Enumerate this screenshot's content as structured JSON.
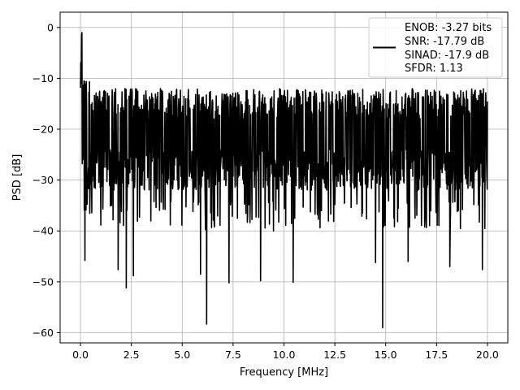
{
  "chart_data": {
    "type": "line",
    "title": "",
    "xlabel": "Frequency [MHz]",
    "ylabel": "PSD [dB]",
    "xlim": [
      -1.0,
      21.0
    ],
    "ylim": [
      -62.0,
      3.0
    ],
    "xticks": [
      0.0,
      2.5,
      5.0,
      7.5,
      10.0,
      12.5,
      15.0,
      17.5,
      20.0
    ],
    "xtick_labels": [
      "0.0",
      "2.5",
      "5.0",
      "7.5",
      "10.0",
      "12.5",
      "15.0",
      "17.5",
      "20.0"
    ],
    "yticks": [
      0,
      -10,
      -20,
      -30,
      -40,
      -50,
      -60
    ],
    "ytick_labels": [
      "0",
      "−10",
      "−20",
      "−30",
      "−40",
      "−50",
      "−60"
    ],
    "grid": true,
    "legend_position": "top-right",
    "series": [
      {
        "name": "",
        "color": "#000000",
        "x_start": 0.0,
        "x_end": 20.0,
        "typical_range_db": [
          -34,
          -12
        ],
        "peak_db": -0.5,
        "deep_dips": [
          {
            "x": 0.22,
            "y": -45.8
          },
          {
            "x": 1.85,
            "y": -47.6
          },
          {
            "x": 2.25,
            "y": -51.2
          },
          {
            "x": 2.6,
            "y": -48.8
          },
          {
            "x": 5.9,
            "y": -48.5
          },
          {
            "x": 6.2,
            "y": -58.3
          },
          {
            "x": 7.3,
            "y": -50.2
          },
          {
            "x": 8.85,
            "y": -49.8
          },
          {
            "x": 10.45,
            "y": -50.1
          },
          {
            "x": 14.5,
            "y": -46.2
          },
          {
            "x": 14.85,
            "y": -59.0
          },
          {
            "x": 16.1,
            "y": -46.0
          },
          {
            "x": 18.15,
            "y": -47.0
          },
          {
            "x": 19.75,
            "y": -47.6
          }
        ]
      }
    ],
    "legend_lines": [
      "ENOB: -3.27 bits",
      "SNR: -17.79 dB",
      "SINAD: -17.9 dB",
      "SFDR: 1.13"
    ]
  }
}
